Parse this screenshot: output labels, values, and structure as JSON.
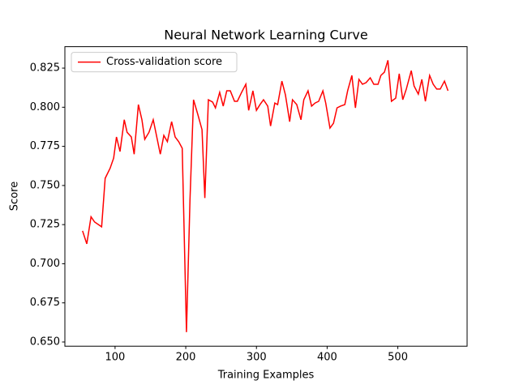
{
  "chart_data": {
    "type": "line",
    "title": "Neural Network Learning Curve",
    "x_label": "Training Examples",
    "y_label": "Score",
    "x": [
      54,
      60,
      66,
      71,
      81,
      86,
      93,
      98,
      102,
      107,
      113,
      117,
      123,
      127,
      133,
      138,
      142,
      148,
      154,
      159,
      164,
      169,
      174,
      180,
      185,
      190,
      195,
      201,
      206,
      211,
      217,
      223,
      227,
      232,
      238,
      242,
      248,
      253,
      258,
      263,
      269,
      273,
      279,
      285,
      289,
      295,
      300,
      305,
      310,
      316,
      320,
      326,
      330,
      336,
      341,
      347,
      351,
      357,
      363,
      367,
      373,
      378,
      383,
      388,
      394,
      398,
      404,
      409,
      414,
      419,
      425,
      429,
      435,
      440,
      445,
      450,
      455,
      461,
      466,
      472,
      476,
      481,
      486,
      491,
      497,
      502,
      507,
      512,
      519,
      523,
      529,
      534,
      539,
      545,
      550,
      555,
      560,
      566,
      571
    ],
    "series": [
      {
        "name": "Cross-validation score",
        "color": "#ff0000",
        "values": [
          0.721,
          0.7127,
          0.73,
          0.7267,
          0.7236,
          0.7546,
          0.761,
          0.7675,
          0.781,
          0.7717,
          0.792,
          0.784,
          0.781,
          0.77,
          0.8017,
          0.792,
          0.7795,
          0.784,
          0.792,
          0.781,
          0.77,
          0.782,
          0.778,
          0.7908,
          0.781,
          0.778,
          0.7738,
          0.6563,
          0.741,
          0.8048,
          0.7955,
          0.7857,
          0.742,
          0.8048,
          0.8033,
          0.7996,
          0.8095,
          0.8007,
          0.8105,
          0.8105,
          0.8038,
          0.8038,
          0.8095,
          0.8147,
          0.798,
          0.8105,
          0.798,
          0.8017,
          0.8048,
          0.8007,
          0.788,
          0.8027,
          0.8017,
          0.8167,
          0.8079,
          0.7908,
          0.8048,
          0.8017,
          0.792,
          0.8048,
          0.8105,
          0.8007,
          0.8027,
          0.8038,
          0.8105,
          0.8027,
          0.7867,
          0.7898,
          0.7996,
          0.8007,
          0.8017,
          0.8105,
          0.8203,
          0.7996,
          0.8178,
          0.8147,
          0.8157,
          0.8188,
          0.8147,
          0.8147,
          0.8203,
          0.8224,
          0.83,
          0.8038,
          0.8058,
          0.8214,
          0.8048,
          0.8116,
          0.8234,
          0.8136,
          0.8084,
          0.8178,
          0.8038,
          0.8203,
          0.8147,
          0.8116,
          0.8116,
          0.8167,
          0.8105
        ]
      }
    ],
    "xlim": [
      29,
      598
    ],
    "ylim": [
      0.6473,
      0.8387
    ],
    "xticks": [
      100,
      200,
      300,
      400,
      500
    ],
    "yticks": [
      {
        "value": 0.65,
        "label": "0.650"
      },
      0.675,
      {
        "value": 0.7,
        "label": "0.700"
      },
      0.725,
      {
        "value": 0.75,
        "label": "0.750"
      },
      0.775,
      {
        "value": 0.8,
        "label": "0.800"
      },
      0.825
    ],
    "legend": "upper left"
  }
}
